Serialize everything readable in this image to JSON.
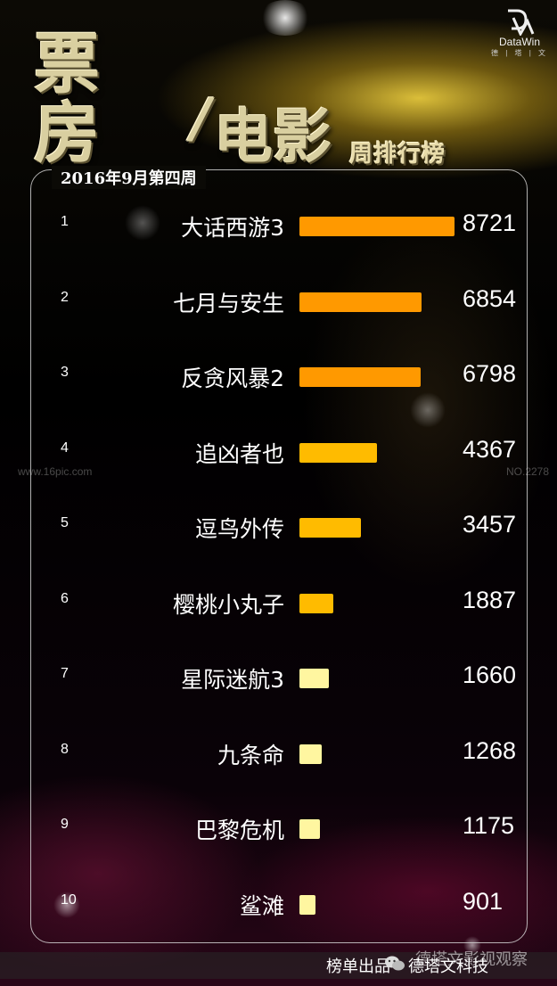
{
  "header": {
    "title_line1": "票",
    "title_line2": "房",
    "slash": "/",
    "title_movie": "电影",
    "subtitle": "周排行榜",
    "logo_text": "DataWin",
    "logo_sub": "德 | 塔 | 文"
  },
  "week_label": "2016年9月第四周",
  "watermarks": {
    "left": "www.16pic.com",
    "right": "NO.2278"
  },
  "footer": {
    "left": "榜单出品",
    "right": "德塔文科技",
    "overlay": "德塔文影视观察"
  },
  "colors": {
    "bar_dark_orange": "#ff9900",
    "bar_orange": "#ffbb00",
    "bar_pale_yellow": "#fff6a0"
  },
  "chart_data": {
    "type": "bar",
    "orientation": "horizontal",
    "ranks": [
      "1",
      "2",
      "3",
      "4",
      "5",
      "6",
      "7",
      "8",
      "9",
      "10"
    ],
    "categories": [
      "大话西游3",
      "七月与安生",
      "反贪风暴2",
      "追凶者也",
      "逗鸟外传",
      "樱桃小丸子",
      "星际迷航3",
      "九条命",
      "巴黎危机",
      "鲨滩"
    ],
    "values": [
      8721,
      6854,
      6798,
      4367,
      3457,
      1887,
      1660,
      1268,
      1175,
      901
    ],
    "value_labels": [
      "8721",
      "6854",
      "6798",
      "4367",
      "3457",
      "1887",
      "1660",
      "1268",
      "1175",
      "901"
    ],
    "bar_colors": [
      "#ff9900",
      "#ff9900",
      "#ff9900",
      "#ffbb00",
      "#ffbb00",
      "#ffbb00",
      "#fff6a0",
      "#fff6a0",
      "#fff6a0",
      "#fff6a0"
    ]
  }
}
